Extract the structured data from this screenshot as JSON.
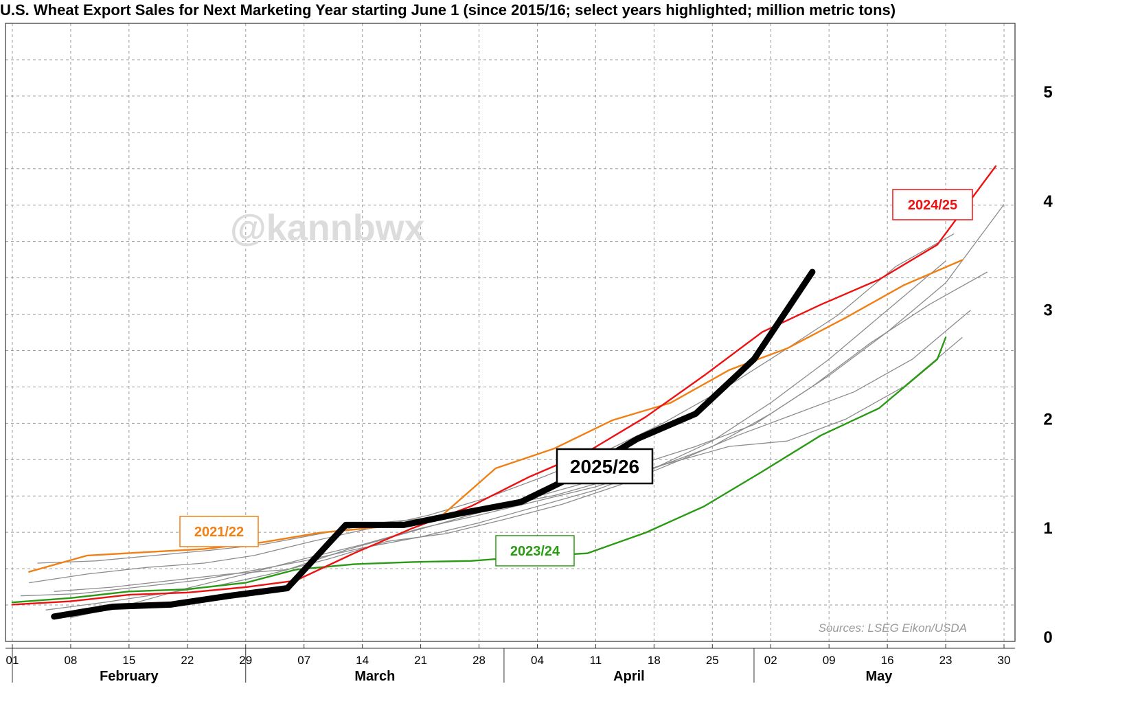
{
  "chart_data": {
    "type": "line",
    "title": "U.S. Wheat Export Sales for Next Marketing Year starting June 1 (since 2015/16; select years highlighted; million metric tons)",
    "watermark": "@kannbwx",
    "source": "Sources: LSEG Eikon/USDA",
    "ylim": [
      0,
      5
    ],
    "y_ticks": [
      0,
      1,
      2,
      3,
      4,
      5
    ],
    "x_start": "02-01",
    "x_end": "05-31",
    "x_ticks": [
      {
        "date": "02-01",
        "label": "01"
      },
      {
        "date": "02-08",
        "label": "08"
      },
      {
        "date": "02-15",
        "label": "15"
      },
      {
        "date": "02-22",
        "label": "22"
      },
      {
        "date": "03-01",
        "label": "29"
      },
      {
        "date": "03-08",
        "label": "07"
      },
      {
        "date": "03-15",
        "label": "14"
      },
      {
        "date": "03-22",
        "label": "21"
      },
      {
        "date": "03-29",
        "label": "28"
      },
      {
        "date": "04-05",
        "label": "04"
      },
      {
        "date": "04-12",
        "label": "11"
      },
      {
        "date": "04-19",
        "label": "18"
      },
      {
        "date": "04-26",
        "label": "25"
      },
      {
        "date": "05-03",
        "label": "02"
      },
      {
        "date": "05-10",
        "label": "09"
      },
      {
        "date": "05-17",
        "label": "16"
      },
      {
        "date": "05-24",
        "label": "23"
      },
      {
        "date": "05-31",
        "label": "30"
      }
    ],
    "months": [
      {
        "label": "February",
        "start": "02-01",
        "end": "03-01"
      },
      {
        "label": "March",
        "start": "03-01",
        "end": "04-01"
      },
      {
        "label": "April",
        "start": "04-01",
        "end": "05-01"
      },
      {
        "label": "May",
        "start": "05-01",
        "end": "05-31"
      }
    ],
    "colors": {
      "2025/26": "#000000",
      "2024/25": "#ee1111",
      "2023/24": "#2a9a14",
      "2021/22": "#f07f14",
      "other": "#8c8c8c"
    },
    "series": [
      {
        "name": "2025/26",
        "highlight": true,
        "x": [
          "02-06",
          "02-13",
          "02-20",
          "02-27",
          "03-06",
          "03-13",
          "03-20",
          "03-27",
          "04-03",
          "04-10",
          "04-17",
          "04-24",
          "05-01",
          "05-08"
        ],
        "y": [
          0.19,
          0.28,
          0.3,
          0.38,
          0.45,
          1.03,
          1.03,
          1.14,
          1.24,
          1.5,
          1.82,
          2.05,
          2.55,
          3.35
        ]
      },
      {
        "name": "2024/25",
        "highlight": true,
        "x": [
          "02-01",
          "02-08",
          "02-15",
          "02-22",
          "02-29",
          "03-07",
          "03-14",
          "03-21",
          "03-28",
          "04-04",
          "04-11",
          "04-18",
          "04-25",
          "05-02",
          "05-09",
          "05-16",
          "05-23",
          "05-30"
        ],
        "y": [
          0.3,
          0.33,
          0.39,
          0.41,
          0.46,
          0.52,
          0.77,
          1.0,
          1.2,
          1.47,
          1.7,
          2.02,
          2.4,
          2.8,
          3.05,
          3.28,
          3.6,
          4.32
        ]
      },
      {
        "name": "2023/24",
        "highlight": true,
        "x": [
          "02-01",
          "02-08",
          "02-15",
          "02-22",
          "02-29",
          "03-07",
          "03-14",
          "03-21",
          "03-28",
          "04-04",
          "04-11",
          "04-18",
          "04-25",
          "05-02",
          "05-09",
          "05-16",
          "05-23",
          "05-24"
        ],
        "y": [
          0.32,
          0.36,
          0.42,
          0.44,
          0.5,
          0.62,
          0.67,
          0.69,
          0.7,
          0.74,
          0.77,
          0.96,
          1.2,
          1.52,
          1.85,
          2.1,
          2.55,
          2.75
        ]
      },
      {
        "name": "2021/22",
        "highlight": true,
        "x": [
          "02-03",
          "02-10",
          "02-17",
          "02-24",
          "03-03",
          "03-10",
          "03-17",
          "03-24",
          "03-31",
          "04-07",
          "04-14",
          "04-21",
          "04-28",
          "05-05",
          "05-12",
          "05-19",
          "05-26"
        ],
        "y": [
          0.6,
          0.75,
          0.78,
          0.81,
          0.87,
          0.96,
          1.01,
          1.08,
          1.55,
          1.73,
          1.99,
          2.15,
          2.45,
          2.65,
          2.93,
          3.23,
          3.46
        ]
      },
      {
        "name": "",
        "x": [
          "02-06",
          "02-13",
          "02-20",
          "02-27",
          "03-06",
          "03-13",
          "03-20",
          "03-27",
          "04-03",
          "04-10",
          "04-17",
          "04-24",
          "05-01",
          "05-08",
          "05-15",
          "05-22",
          "05-29"
        ],
        "y": [
          0.42,
          0.46,
          0.52,
          0.58,
          0.62,
          0.8,
          0.95,
          1.1,
          1.25,
          1.4,
          1.58,
          1.75,
          1.95,
          2.3,
          2.7,
          3.05,
          3.35
        ]
      },
      {
        "name": "",
        "x": [
          "02-04",
          "02-11",
          "02-18",
          "02-25",
          "03-03",
          "03-10",
          "03-17",
          "03-24",
          "03-31",
          "04-07",
          "04-14",
          "04-21",
          "04-28",
          "05-05",
          "05-12",
          "05-19",
          "05-26"
        ],
        "y": [
          0.68,
          0.7,
          0.75,
          0.8,
          0.85,
          0.95,
          1.05,
          1.1,
          1.2,
          1.3,
          1.45,
          1.6,
          1.75,
          1.8,
          2.0,
          2.3,
          2.75
        ]
      },
      {
        "name": "",
        "x": [
          "02-05",
          "02-12",
          "02-19",
          "02-26",
          "03-04",
          "03-11",
          "03-18",
          "03-25",
          "04-01",
          "04-08",
          "04-15",
          "04-22",
          "04-29",
          "05-06",
          "05-13",
          "05-20",
          "05-27"
        ],
        "y": [
          0.25,
          0.32,
          0.4,
          0.48,
          0.58,
          0.72,
          0.88,
          0.95,
          1.08,
          1.22,
          1.4,
          1.62,
          1.85,
          2.05,
          2.25,
          2.55,
          3.0
        ]
      },
      {
        "name": "",
        "x": [
          "02-08",
          "02-15",
          "02-22",
          "03-01",
          "03-08",
          "03-15",
          "03-22",
          "03-29",
          "04-05",
          "04-12",
          "04-19",
          "04-26",
          "05-03",
          "05-10",
          "05-17",
          "05-24",
          "05-31"
        ],
        "y": [
          0.18,
          0.3,
          0.45,
          0.58,
          0.72,
          0.85,
          1.0,
          1.12,
          1.25,
          1.38,
          1.55,
          1.75,
          2.05,
          2.4,
          2.8,
          3.25,
          3.97
        ]
      },
      {
        "name": "",
        "x": [
          "02-03",
          "02-10",
          "02-17",
          "02-24",
          "03-02",
          "03-09",
          "03-16",
          "03-23",
          "03-30",
          "04-06",
          "04-13",
          "04-20",
          "04-27",
          "05-04",
          "05-11",
          "05-18",
          "05-25"
        ],
        "y": [
          0.5,
          0.58,
          0.64,
          0.68,
          0.75,
          0.88,
          1.0,
          1.12,
          1.28,
          1.48,
          1.7,
          1.96,
          2.26,
          2.6,
          2.95,
          3.4,
          3.7
        ]
      },
      {
        "name": "",
        "x": [
          "02-02",
          "02-09",
          "02-16",
          "02-23",
          "03-01",
          "03-08",
          "03-15",
          "03-22",
          "03-29",
          "04-05",
          "04-12",
          "04-19",
          "04-26",
          "05-03",
          "05-10",
          "05-17",
          "05-24"
        ],
        "y": [
          0.38,
          0.4,
          0.46,
          0.52,
          0.6,
          0.7,
          0.82,
          0.92,
          1.05,
          1.2,
          1.35,
          1.55,
          1.8,
          2.15,
          2.55,
          3.0,
          3.45
        ]
      }
    ],
    "labels": [
      {
        "series": "2021/22",
        "text": "2021/22"
      },
      {
        "series": "2023/24",
        "text": "2023/24"
      },
      {
        "series": "2024/25",
        "text": "2024/25"
      },
      {
        "series": "2025/26",
        "text": "2025/26"
      }
    ]
  }
}
